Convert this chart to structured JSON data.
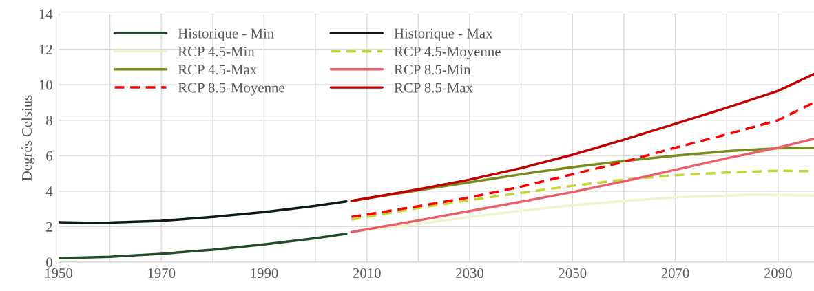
{
  "chart_data": {
    "type": "line",
    "ylabel": "Degrés Celsius",
    "xlim": [
      1950,
      2097
    ],
    "xticks": [
      1950,
      {
        "value": 1960,
        "label": null
      },
      1970,
      {
        "value": 1980,
        "label": null
      },
      1990,
      {
        "value": 2000,
        "label": null
      },
      2010,
      {
        "value": 2020,
        "label": null
      },
      2030,
      {
        "value": 2040,
        "label": null
      },
      2050,
      {
        "value": 2060,
        "label": null
      },
      2070,
      {
        "value": 2080,
        "label": null
      },
      2090
    ],
    "ylim": [
      0,
      14
    ],
    "yticks": [
      0,
      2,
      4,
      6,
      8,
      10,
      12,
      14
    ],
    "grid": true,
    "legend": "top",
    "series": [
      {
        "name": "Historique - Min",
        "color": "#254b2b",
        "line_style": "solid",
        "x": [
          1950,
          1960,
          1970,
          1980,
          1990,
          2000,
          2006
        ],
        "values": [
          0.22,
          0.3,
          0.47,
          0.7,
          1.0,
          1.35,
          1.6
        ]
      },
      {
        "name": "Historique - Max",
        "color": "#0d1a10",
        "line_style": "solid",
        "x": [
          1950,
          1955,
          1960,
          1970,
          1980,
          1990,
          2000,
          2006
        ],
        "values": [
          2.25,
          2.22,
          2.23,
          2.33,
          2.55,
          2.82,
          3.17,
          3.42
        ]
      },
      {
        "name": "RCP 4.5-Min",
        "color": "#eef4cc",
        "line_style": "solid",
        "x": [
          2007,
          2020,
          2030,
          2040,
          2050,
          2060,
          2070,
          2085,
          2097
        ],
        "values": [
          1.7,
          2.15,
          2.55,
          2.9,
          3.2,
          3.45,
          3.65,
          3.8,
          3.75
        ]
      },
      {
        "name": "RCP 4.5-Moyenne",
        "color": "#c3d630",
        "line_style": "dashed",
        "x": [
          2007,
          2020,
          2030,
          2040,
          2050,
          2060,
          2070,
          2080,
          2090,
          2097
        ],
        "values": [
          2.4,
          3.05,
          3.5,
          3.9,
          4.3,
          4.65,
          4.9,
          5.05,
          5.15,
          5.12
        ]
      },
      {
        "name": "RCP 4.5-Max",
        "color": "#7a8b1e",
        "line_style": "solid",
        "x": [
          2007,
          2020,
          2030,
          2040,
          2050,
          2060,
          2070,
          2080,
          2090,
          2097
        ],
        "values": [
          3.45,
          4.05,
          4.5,
          4.95,
          5.35,
          5.7,
          6.0,
          6.25,
          6.42,
          6.45
        ]
      },
      {
        "name": "RCP 8.5-Min",
        "color": "#eb5f6a",
        "line_style": "solid",
        "x": [
          2007,
          2020,
          2030,
          2040,
          2050,
          2060,
          2070,
          2080,
          2090,
          2097
        ],
        "values": [
          1.7,
          2.35,
          2.88,
          3.4,
          3.95,
          4.55,
          5.2,
          5.85,
          6.45,
          6.95
        ]
      },
      {
        "name": "RCP 8.5-Moyenne",
        "color": "#ff0000",
        "line_style": "dashed",
        "x": [
          2007,
          2020,
          2030,
          2040,
          2050,
          2060,
          2070,
          2080,
          2090,
          2097
        ],
        "values": [
          2.55,
          3.15,
          3.65,
          4.25,
          4.95,
          5.65,
          6.45,
          7.2,
          8.0,
          9.0
        ]
      },
      {
        "name": "RCP 8.5-Max",
        "color": "#c00000",
        "line_style": "solid",
        "x": [
          2007,
          2020,
          2030,
          2040,
          2050,
          2060,
          2070,
          2080,
          2090,
          2097
        ],
        "values": [
          3.45,
          4.1,
          4.65,
          5.3,
          6.05,
          6.9,
          7.8,
          8.7,
          9.65,
          10.6
        ]
      }
    ]
  }
}
